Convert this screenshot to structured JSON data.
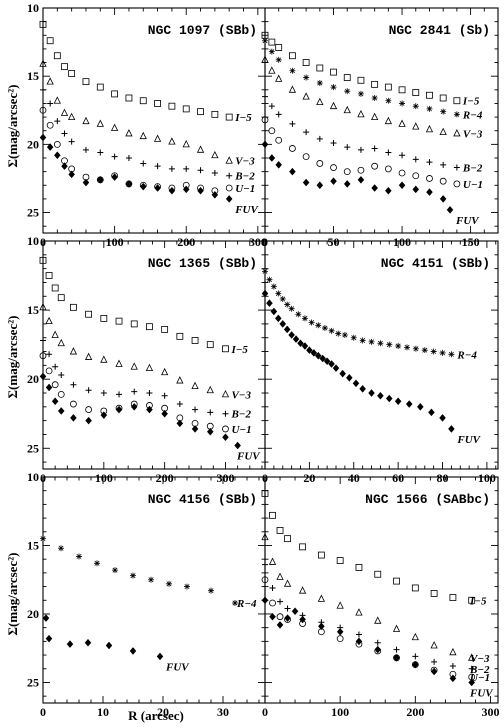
{
  "figure": {
    "ylabel": "Σ(mag/arcsec²)",
    "xlabel": "R (arcsec)"
  },
  "chart_data": [
    {
      "type": "scatter",
      "title": "NGC 1097 (SBb)",
      "xlim": [
        0,
        310
      ],
      "ylim": [
        26.5,
        10
      ],
      "xticks": [
        0,
        100,
        200,
        300
      ],
      "yticks": [
        10,
        15,
        20,
        25
      ],
      "series": [
        {
          "name": "I−5",
          "marker": "square",
          "x": [
            0,
            10,
            20,
            30,
            40,
            60,
            80,
            100,
            120,
            140,
            160,
            180,
            200,
            220,
            240,
            260
          ],
          "y": [
            11.2,
            12.4,
            13.5,
            14.3,
            14.8,
            15.4,
            15.8,
            16.3,
            16.6,
            16.8,
            17.0,
            17.2,
            17.4,
            17.6,
            17.8,
            18.0
          ]
        },
        {
          "name": "V−3",
          "marker": "triangle",
          "x": [
            0,
            10,
            20,
            30,
            40,
            60,
            80,
            100,
            120,
            140,
            160,
            180,
            200,
            220,
            240,
            260
          ],
          "y": [
            14.1,
            15.4,
            16.8,
            17.7,
            18.0,
            18.3,
            18.5,
            18.8,
            19.2,
            19.4,
            19.6,
            19.8,
            20.0,
            20.4,
            20.8,
            21.2
          ]
        },
        {
          "name": "B−2",
          "marker": "plus",
          "x": [
            0,
            10,
            20,
            30,
            40,
            60,
            80,
            100,
            120,
            140,
            160,
            180,
            200,
            220,
            240,
            260
          ],
          "y": [
            16.0,
            17.0,
            18.3,
            19.2,
            19.8,
            20.4,
            20.6,
            20.9,
            21.0,
            21.4,
            21.6,
            21.8,
            21.8,
            21.9,
            22.1,
            22.3
          ]
        },
        {
          "name": "U−1",
          "marker": "circle",
          "x": [
            0,
            10,
            20,
            30,
            40,
            60,
            80,
            100,
            120,
            140,
            160,
            180,
            200,
            220,
            240,
            260
          ],
          "y": [
            17.5,
            18.6,
            20.0,
            21.2,
            21.8,
            22.4,
            22.6,
            22.3,
            22.9,
            23.0,
            23.1,
            23.2,
            23.0,
            23.2,
            23.4,
            23.2
          ]
        },
        {
          "name": "FUV",
          "marker": "diamond",
          "x": [
            0,
            10,
            20,
            30,
            40,
            60,
            80,
            100,
            120,
            140,
            160,
            180,
            200,
            220,
            240,
            260
          ],
          "y": [
            19.5,
            20.2,
            20.8,
            21.6,
            22.2,
            22.8,
            22.6,
            22.4,
            22.9,
            23.1,
            23.2,
            23.4,
            23.3,
            23.4,
            23.7,
            24.0
          ]
        }
      ]
    },
    {
      "type": "scatter",
      "title": "NGC 2841 (Sb)",
      "xlim": [
        0,
        170
      ],
      "ylim": [
        26.5,
        10
      ],
      "xticks": [
        0,
        50,
        100,
        150
      ],
      "yticks": [
        10,
        15,
        20,
        25
      ],
      "series": [
        {
          "name": "I−5",
          "marker": "square",
          "x": [
            0,
            5,
            10,
            20,
            30,
            40,
            50,
            60,
            70,
            80,
            90,
            100,
            110,
            120,
            130,
            140
          ],
          "y": [
            12.0,
            12.5,
            12.9,
            13.5,
            14.0,
            14.4,
            14.7,
            15.1,
            15.3,
            15.6,
            15.8,
            16.0,
            16.2,
            16.4,
            16.6,
            16.8
          ]
        },
        {
          "name": "R−4",
          "marker": "star",
          "x": [
            0,
            5,
            10,
            20,
            30,
            40,
            50,
            60,
            70,
            80,
            90,
            100,
            110,
            120,
            130,
            140
          ],
          "y": [
            12.4,
            13.2,
            13.8,
            14.6,
            15.1,
            15.5,
            15.8,
            16.1,
            16.3,
            16.6,
            16.8,
            17.0,
            17.2,
            17.4,
            17.6,
            17.8
          ]
        },
        {
          "name": "V−3",
          "marker": "triangle",
          "x": [
            0,
            5,
            10,
            20,
            30,
            40,
            50,
            60,
            70,
            80,
            90,
            100,
            110,
            120,
            130,
            140
          ],
          "y": [
            13.8,
            14.6,
            15.2,
            16.0,
            16.5,
            16.9,
            17.2,
            17.5,
            17.8,
            18.0,
            18.3,
            18.5,
            18.7,
            18.9,
            19.1,
            19.2
          ]
        },
        {
          "name": "B−2",
          "marker": "plus",
          "x": [
            0,
            5,
            10,
            20,
            30,
            40,
            50,
            60,
            70,
            80,
            90,
            100,
            110,
            120,
            130,
            140
          ],
          "y": [
            16.5,
            17.2,
            17.8,
            18.5,
            19.1,
            19.6,
            19.9,
            20.2,
            20.4,
            20.3,
            20.6,
            20.8,
            21.1,
            21.3,
            21.5,
            21.7
          ]
        },
        {
          "name": "U−1",
          "marker": "circle",
          "x": [
            0,
            5,
            10,
            20,
            30,
            40,
            50,
            60,
            70,
            80,
            90,
            100,
            110,
            120,
            130,
            140
          ],
          "y": [
            18.2,
            19.0,
            19.7,
            20.3,
            20.9,
            21.4,
            21.7,
            22.0,
            21.9,
            21.6,
            21.8,
            22.1,
            22.3,
            22.5,
            22.7,
            22.9
          ]
        },
        {
          "name": "FUV",
          "marker": "diamond",
          "x": [
            0,
            5,
            10,
            20,
            30,
            40,
            50,
            60,
            70,
            80,
            90,
            100,
            110,
            120,
            130,
            135
          ],
          "y": [
            20.0,
            21.0,
            21.5,
            22.0,
            22.8,
            23.0,
            22.7,
            22.9,
            22.6,
            23.2,
            23.4,
            23.0,
            23.3,
            23.5,
            24.0,
            24.8
          ]
        }
      ]
    },
    {
      "type": "scatter",
      "title": "NGC 1365 (SBb)",
      "xlim": [
        0,
        365
      ],
      "ylim": [
        26.5,
        10
      ],
      "xticks": [
        0,
        100,
        200,
        300
      ],
      "yticks": [
        10,
        15,
        20,
        25
      ],
      "series": [
        {
          "name": "I−5",
          "marker": "square",
          "x": [
            0,
            10,
            20,
            30,
            50,
            75,
            100,
            125,
            150,
            175,
            200,
            225,
            250,
            275,
            300
          ],
          "y": [
            11.4,
            12.5,
            13.4,
            14.1,
            14.8,
            15.3,
            15.6,
            15.8,
            16.0,
            16.2,
            16.4,
            16.9,
            17.2,
            17.5,
            17.8
          ]
        },
        {
          "name": "V−3",
          "marker": "triangle",
          "x": [
            0,
            10,
            20,
            30,
            50,
            75,
            100,
            125,
            150,
            175,
            200,
            225,
            250,
            275,
            300
          ],
          "y": [
            14.8,
            15.8,
            16.8,
            17.4,
            18.0,
            18.4,
            18.6,
            18.9,
            19.1,
            19.2,
            19.5,
            20.1,
            20.5,
            20.8,
            21.1
          ]
        },
        {
          "name": "B−2",
          "marker": "plus",
          "x": [
            0,
            10,
            20,
            30,
            50,
            75,
            100,
            125,
            150,
            175,
            200,
            225,
            250,
            275,
            300
          ],
          "y": [
            17.2,
            18.2,
            19.1,
            19.7,
            20.4,
            20.8,
            21.0,
            21.1,
            20.9,
            21.0,
            21.2,
            21.8,
            22.2,
            22.4,
            22.5
          ]
        },
        {
          "name": "U−1",
          "marker": "circle",
          "x": [
            0,
            10,
            20,
            30,
            50,
            75,
            100,
            125,
            150,
            175,
            200,
            225,
            250,
            275,
            300
          ],
          "y": [
            18.3,
            19.4,
            20.4,
            21.1,
            21.8,
            22.2,
            22.3,
            22.1,
            21.8,
            21.9,
            22.1,
            22.8,
            23.2,
            23.4,
            23.6
          ]
        },
        {
          "name": "FUV",
          "marker": "diamond",
          "x": [
            0,
            10,
            20,
            30,
            50,
            75,
            100,
            125,
            150,
            175,
            200,
            225,
            250,
            275,
            300,
            320
          ],
          "y": [
            19.8,
            20.6,
            21.6,
            22.3,
            22.8,
            23.0,
            22.6,
            22.2,
            22.0,
            22.2,
            22.5,
            23.2,
            23.6,
            23.8,
            24.2,
            24.8
          ]
        }
      ]
    },
    {
      "type": "scatter",
      "title": "NGC 4151 (SBb)",
      "xlim": [
        0,
        105
      ],
      "ylim": [
        26.5,
        10
      ],
      "xticks": [
        0,
        20,
        40,
        60,
        80,
        100
      ],
      "yticks": [
        10,
        15,
        20,
        25
      ],
      "series": [
        {
          "name": "R−4",
          "marker": "star",
          "x": [
            0,
            2,
            4,
            6,
            8,
            10,
            12,
            15,
            18,
            21,
            24,
            27,
            30,
            33,
            36,
            40,
            44,
            48,
            52,
            56,
            60,
            64,
            68,
            72,
            76,
            80,
            84
          ],
          "y": [
            12.2,
            12.8,
            13.3,
            13.8,
            14.2,
            14.6,
            14.9,
            15.3,
            15.6,
            15.9,
            16.1,
            16.3,
            16.5,
            16.7,
            16.8,
            17.0,
            17.2,
            17.3,
            17.4,
            17.5,
            17.6,
            17.7,
            17.8,
            17.9,
            18.0,
            18.1,
            18.2
          ]
        },
        {
          "name": "FUV",
          "marker": "diamond",
          "x": [
            0,
            2,
            4,
            6,
            8,
            10,
            12,
            14,
            16,
            18,
            20,
            22,
            24,
            26,
            28,
            30,
            32,
            35,
            38,
            41,
            44,
            48,
            52,
            56,
            60,
            65,
            70,
            75,
            80,
            84
          ],
          "y": [
            13.8,
            14.5,
            15.1,
            15.6,
            16.0,
            16.4,
            16.8,
            17.1,
            17.4,
            17.6,
            17.9,
            18.1,
            18.3,
            18.5,
            18.7,
            18.9,
            19.2,
            19.6,
            19.9,
            20.3,
            20.7,
            21.0,
            21.2,
            21.4,
            21.6,
            21.8,
            22.0,
            22.4,
            22.8,
            23.6
          ]
        }
      ]
    },
    {
      "type": "scatter",
      "title": "NGC 4156 (SBb)",
      "xlim": [
        0,
        37
      ],
      "ylim": [
        26.5,
        10
      ],
      "xticks": [
        0,
        10,
        20,
        30
      ],
      "yticks": [
        10,
        15,
        20,
        25
      ],
      "series": [
        {
          "name": "R−4",
          "marker": "star",
          "x": [
            0,
            3,
            6,
            9,
            12,
            15,
            18,
            21,
            24,
            28,
            32
          ],
          "y": [
            14.5,
            15.2,
            15.8,
            16.3,
            16.8,
            17.2,
            17.5,
            17.8,
            18.0,
            18.3,
            19.2
          ]
        },
        {
          "name": "FUV",
          "marker": "diamond",
          "x": [
            0.5,
            1,
            4.5,
            7.5,
            11,
            15,
            19.5
          ],
          "y": [
            20.3,
            21.8,
            22.2,
            22.1,
            22.3,
            22.7,
            23.1
          ]
        }
      ]
    },
    {
      "type": "scatter",
      "title": "NGC 1566 (SABbc)",
      "xlim": [
        0,
        310
      ],
      "ylim": [
        26.5,
        10
      ],
      "xticks": [
        0,
        100,
        200,
        300
      ],
      "yticks": [
        10,
        15,
        20,
        25
      ],
      "series": [
        {
          "name": "I−5",
          "marker": "square",
          "x": [
            0,
            10,
            20,
            30,
            50,
            75,
            100,
            125,
            150,
            175,
            200,
            225,
            250,
            275
          ],
          "y": [
            11.2,
            12.8,
            13.9,
            14.5,
            15.1,
            15.7,
            16.1,
            16.6,
            17.1,
            17.6,
            18.1,
            18.5,
            18.8,
            19.0
          ]
        },
        {
          "name": "V−3",
          "marker": "triangle",
          "x": [
            0,
            10,
            20,
            30,
            50,
            75,
            100,
            125,
            150,
            175,
            200,
            225,
            250,
            275
          ],
          "y": [
            14.4,
            16.2,
            17.3,
            17.8,
            18.3,
            18.9,
            19.4,
            19.9,
            20.5,
            21.1,
            21.7,
            22.3,
            22.8,
            23.2
          ]
        },
        {
          "name": "B−2",
          "marker": "plus",
          "x": [
            0,
            10,
            20,
            30,
            50,
            75,
            100,
            125,
            150,
            175,
            200,
            225,
            250,
            275
          ],
          "y": [
            16.4,
            18.1,
            19.1,
            19.6,
            20.1,
            20.6,
            21.0,
            21.5,
            22.1,
            22.6,
            23.1,
            23.5,
            23.8,
            24.0
          ]
        },
        {
          "name": "U−1",
          "marker": "circle",
          "x": [
            0,
            10,
            20,
            30,
            50,
            75,
            100,
            125,
            150,
            175,
            200,
            225,
            250,
            275
          ],
          "y": [
            17.5,
            19.2,
            20.2,
            20.4,
            20.7,
            21.3,
            21.8,
            22.2,
            22.7,
            23.2,
            23.7,
            24.1,
            24.4,
            24.6
          ]
        },
        {
          "name": "FUV",
          "marker": "diamond",
          "x": [
            0,
            10,
            20,
            30,
            40,
            50,
            75,
            100,
            125,
            150,
            175,
            200,
            225,
            250,
            275
          ],
          "y": [
            19.0,
            20.2,
            20.8,
            20.3,
            19.8,
            20.4,
            20.9,
            21.3,
            22.0,
            22.6,
            23.2,
            23.7,
            24.2,
            24.7,
            25.0
          ]
        }
      ]
    }
  ]
}
